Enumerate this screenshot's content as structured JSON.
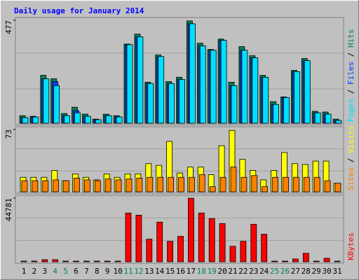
{
  "chart_data": {
    "type": "bar",
    "title": "Daily usage for January 2014",
    "categories": [
      "1",
      "2",
      "3",
      "4",
      "5",
      "6",
      "7",
      "8",
      "9",
      "10",
      "11",
      "12",
      "13",
      "14",
      "15",
      "16",
      "17",
      "18",
      "19",
      "20",
      "21",
      "22",
      "23",
      "24",
      "25",
      "26",
      "27",
      "28",
      "29",
      "30",
      "31"
    ],
    "category_colors": [
      "#000000",
      "#000000",
      "#000000",
      "#008060",
      "#008060",
      "#000000",
      "#000000",
      "#000000",
      "#000000",
      "#000000",
      "#008060",
      "#008060",
      "#000000",
      "#000000",
      "#000000",
      "#000000",
      "#000000",
      "#008060",
      "#008060",
      "#000000",
      "#000000",
      "#000000",
      "#000000",
      "#000000",
      "#008060",
      "#008060",
      "#000000",
      "#000000",
      "#000000",
      "#000000",
      "#000000"
    ],
    "legend_separator": " / ",
    "panels": [
      {
        "ylim": [
          0,
          477
        ],
        "yticks": [
          477
        ],
        "series": [
          {
            "name": "Hits",
            "color": "#00805c",
            "values": [
              35,
              32,
              222,
              206,
              45,
              74,
              42,
              19,
              42,
              35,
              367,
              413,
              190,
              316,
              193,
              213,
              474,
              371,
              342,
              390,
              190,
              355,
              313,
              222,
              100,
              122,
              245,
              300,
              55,
              52,
              19
            ]
          },
          {
            "name": "Files",
            "color": "#0040ff",
            "values": [
              26,
              29,
              206,
              193,
              35,
              58,
              32,
              16,
              35,
              29,
              364,
              400,
              184,
              309,
              184,
              203,
              461,
              358,
              338,
              384,
              174,
              338,
              303,
              213,
              87,
              119,
              239,
              290,
              48,
              42,
              13
            ]
          },
          {
            "name": "Pages",
            "color": "#00e0ff",
            "values": [
              26,
              29,
              206,
              174,
              35,
              48,
              32,
              16,
              35,
              29,
              364,
              400,
              184,
              309,
              184,
              203,
              461,
              358,
              338,
              384,
              174,
              338,
              303,
              213,
              87,
              119,
              239,
              290,
              48,
              42,
              13
            ]
          }
        ]
      },
      {
        "ylim": [
          0,
          73
        ],
        "yticks": [
          73
        ],
        "series": [
          {
            "name": "Visits",
            "color": "#ffff00",
            "values": [
              17,
              17,
              17,
              25,
              13,
              21,
              17,
              14,
              21,
              17,
              21,
              21,
              33,
              31,
              59,
              22,
              29,
              29,
              20,
              54,
              72,
              38,
              25,
              14,
              25,
              46,
              33,
              32,
              36,
              36,
              10
            ]
          },
          {
            "name": "Sites",
            "color": "#ff8000",
            "values": [
              13,
              13,
              13,
              14,
              13,
              16,
              14,
              13,
              15,
              14,
              15,
              16,
              17,
              17,
              17,
              17,
              17,
              20,
              6,
              17,
              29,
              17,
              19,
              6,
              17,
              17,
              17,
              17,
              17,
              13,
              10
            ]
          }
        ]
      },
      {
        "ylim": [
          0,
          44781
        ],
        "yticks": [
          44781
        ],
        "series": [
          {
            "name": "KBytes",
            "color": "#ff0000",
            "values": [
              500,
              500,
              1500,
              1500,
              500,
              500,
              500,
              500,
              500,
              500,
              34300,
              32800,
              15900,
              27900,
              14400,
              17900,
              44700,
              34300,
              30400,
              26900,
              10900,
              14400,
              26400,
              19400,
              500,
              500,
              2000,
              6000,
              500,
              2500,
              500
            ]
          }
        ]
      }
    ]
  }
}
